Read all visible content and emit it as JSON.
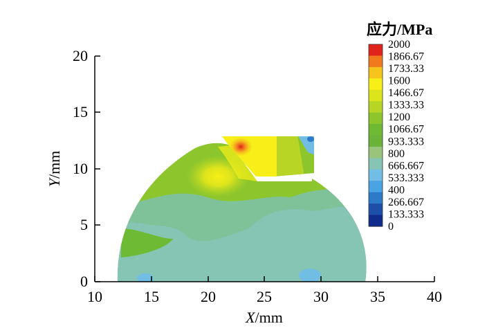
{
  "chart_data": {
    "type": "heatmap",
    "title": "",
    "xlabel": {
      "var": "X",
      "unit": "/mm"
    },
    "ylabel": {
      "var": "Y",
      "unit": "/mm"
    },
    "xlim": [
      10,
      40
    ],
    "ylim": [
      0,
      20
    ],
    "xticks": [
      10,
      15,
      20,
      25,
      30,
      35,
      40
    ],
    "yticks": [
      0,
      5,
      10,
      15,
      20
    ],
    "colorbar": {
      "title": "应力/MPa",
      "levels": [
        "2000",
        "1866.67",
        "1733.33",
        "1600",
        "1466.67",
        "1333.33",
        "1200",
        "1066.67",
        "933.333",
        "800",
        "666.667",
        "533.333",
        "400",
        "266.667",
        "133.333",
        "0"
      ],
      "colors": [
        "#e0241c",
        "#f27a1e",
        "#f6c51c",
        "#f7ef17",
        "#dce41c",
        "#b8d525",
        "#8dc62c",
        "#6eba34",
        "#6ab338",
        "#9ac47b",
        "#86c4b4",
        "#72bde4",
        "#4aa3e3",
        "#2c7ac8",
        "#1e4fa8",
        "#0f2b8c"
      ]
    }
  }
}
